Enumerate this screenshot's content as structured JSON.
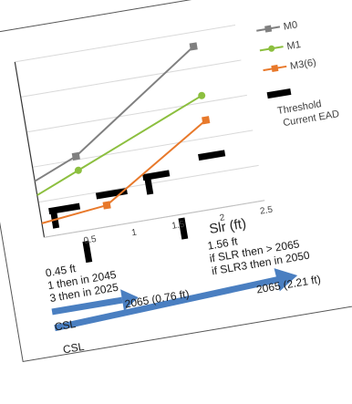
{
  "chart_data": {
    "type": "line",
    "xlabel": "Slr (ft)",
    "ylabel": "",
    "title": "",
    "xlim": [
      0,
      2.5
    ],
    "x_ticks": [
      "0.5",
      "1",
      "1.5",
      "2",
      "2.5"
    ],
    "series": [
      {
        "name": "M0",
        "color": "#808080",
        "marker": "square",
        "x": [
          0,
          0.5,
          2
        ],
        "y": [
          1.6,
          2.1,
          4.6
        ]
      },
      {
        "name": "M1",
        "color": "#8cbf3f",
        "marker": "circle",
        "x": [
          0,
          0.5,
          2
        ],
        "y": [
          1.2,
          1.7,
          3.2
        ]
      },
      {
        "name": "M3(6)",
        "color": "#e8792b",
        "marker": "square",
        "x": [
          0,
          0.75,
          2
        ],
        "y": [
          0.4,
          0.6,
          2.5
        ]
      }
    ],
    "threshold": {
      "label": "Threshold",
      "color": "#000000"
    },
    "current_ead": {
      "label": "Current EAD"
    }
  },
  "annotations": {
    "left_lines": [
      "0.45 ft",
      "1 then in 2045",
      "3 then in 2025"
    ],
    "right_lines": [
      "1.56 ft",
      "if SLR then > 2065",
      "if SLR3 then in 2050"
    ],
    "arrow1_label": "2065 (0.76 ft)",
    "arrow2_label": "2065 (2.21 ft)",
    "csl_1": "CSL",
    "csl_2": "CSL"
  },
  "colors": {
    "arrow": "#4a7fc1"
  }
}
